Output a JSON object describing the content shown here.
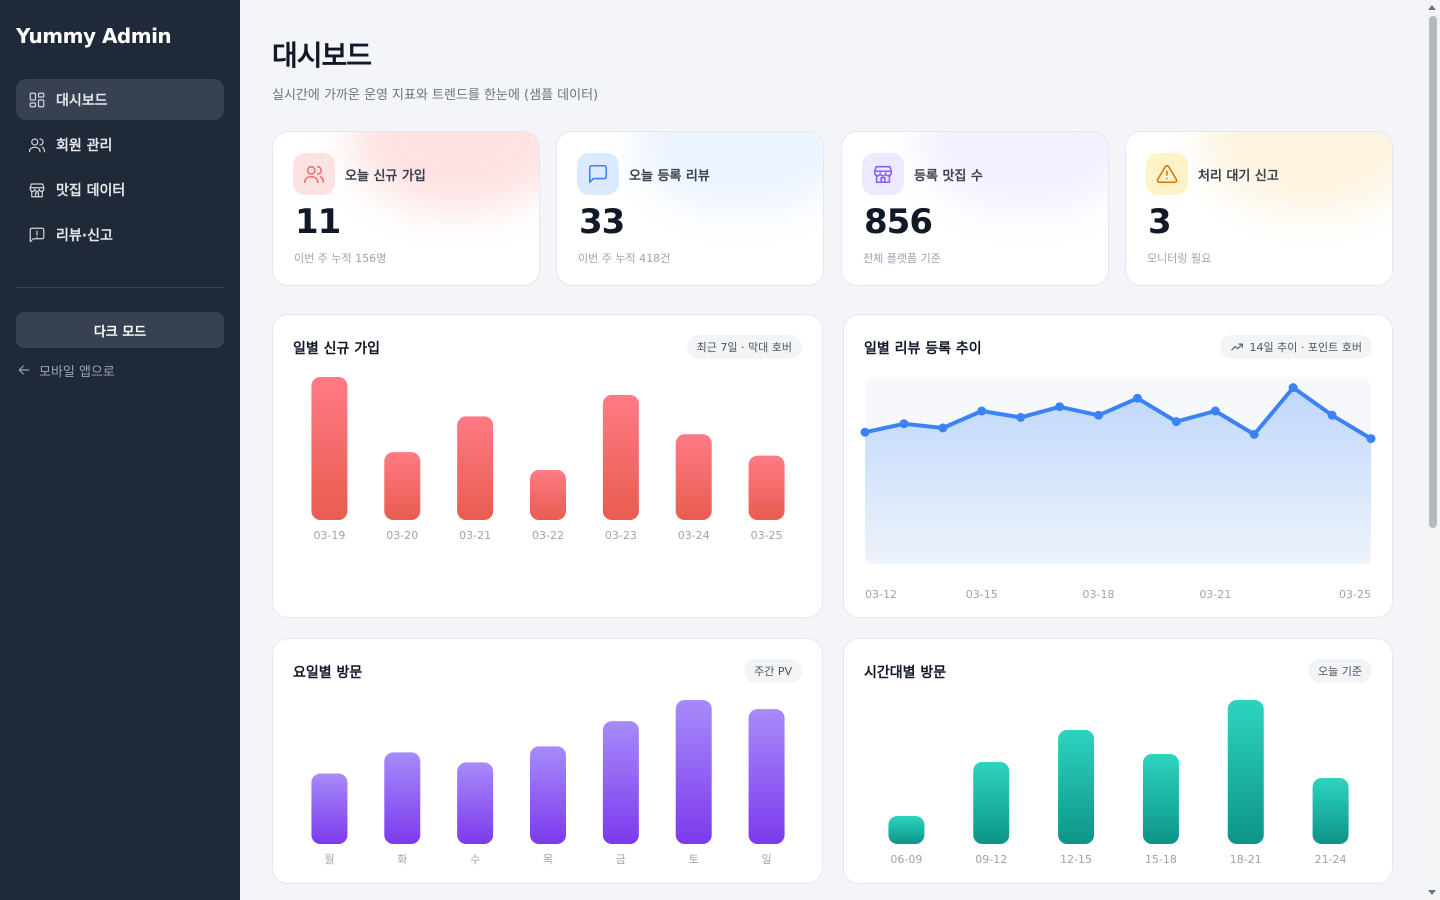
{
  "brand": "Yummy Admin",
  "sidebar": {
    "items": [
      {
        "label": "대시보드",
        "icon": "dashboard-icon",
        "active": true
      },
      {
        "label": "회원 관리",
        "icon": "users-icon",
        "active": false
      },
      {
        "label": "맛집 데이터",
        "icon": "store-icon",
        "active": false
      },
      {
        "label": "리뷰·신고",
        "icon": "report-icon",
        "active": false
      }
    ],
    "dark_mode_label": "다크 모드",
    "back_label": "모바일 앱으로"
  },
  "header": {
    "title": "대시보드",
    "subtitle": "실시간에 가까운 운영 지표와 트렌드를 한눈에 (샘플 데이터)"
  },
  "stats": [
    {
      "label": "오늘 신규 가입",
      "value": "11",
      "foot": "이번 주 누적 156명",
      "icon": "users-icon",
      "color": "#ef6b6b",
      "bg": "#fde2e2",
      "glow": "#fecaca"
    },
    {
      "label": "오늘 등록 리뷰",
      "value": "33",
      "foot": "이번 주 누적 418건",
      "icon": "message-icon",
      "color": "#3b82f6",
      "bg": "#dbeafe",
      "glow": "#dbeafe"
    },
    {
      "label": "등록 맛집 수",
      "value": "856",
      "foot": "전체 플랫폼 기준",
      "icon": "store-icon",
      "color": "#8b5cf6",
      "bg": "#ede9fe",
      "glow": "#e9e3ff"
    },
    {
      "label": "처리 대기 신고",
      "value": "3",
      "foot": "모니터링 필요",
      "icon": "warning-icon",
      "color": "#d97706",
      "bg": "#fef3c7",
      "glow": "#fde9c4"
    }
  ],
  "panels": {
    "daily_signups": {
      "title": "일별 신규 가입",
      "chip": "최근 7일 · 막대 호버"
    },
    "review_trend": {
      "title": "일별 리뷰 등록 추이",
      "chip": "14일 추이 · 포인트 호버"
    },
    "weekday_visits": {
      "title": "요일별 방문",
      "chip": "주간 PV"
    },
    "hourly_visits": {
      "title": "시간대별 방문",
      "chip": "오늘 기준"
    }
  },
  "chart_data": [
    {
      "type": "bar",
      "title": "일별 신규 가입",
      "categories": [
        "03-19",
        "03-20",
        "03-21",
        "03-22",
        "03-23",
        "03-24",
        "03-25"
      ],
      "values": [
        20,
        9.5,
        14.5,
        7,
        17.5,
        12,
        9
      ],
      "colors": [
        "#ff7a85",
        "#e85d4f"
      ]
    },
    {
      "type": "area",
      "title": "일별 리뷰 등록 추이",
      "categories": [
        "03-12",
        "03-13",
        "03-14",
        "03-15",
        "03-16",
        "03-17",
        "03-18",
        "03-19",
        "03-20",
        "03-21",
        "03-22",
        "03-23",
        "03-24",
        "03-25"
      ],
      "tick_labels": [
        "03-12",
        "03-15",
        "03-18",
        "03-21",
        "03-25"
      ],
      "values": [
        31,
        33,
        32,
        36,
        34.5,
        37,
        35,
        39,
        33.5,
        36,
        30.5,
        41.5,
        35,
        29.5
      ],
      "ylim": [
        0,
        44
      ],
      "colors": [
        "#3b82f6",
        "#bfd7fb"
      ]
    },
    {
      "type": "bar",
      "title": "요일별 방문",
      "categories": [
        "월",
        "화",
        "수",
        "목",
        "금",
        "토",
        "일"
      ],
      "values": [
        70,
        91,
        81,
        97,
        122,
        143,
        134
      ],
      "colors": [
        "#a78bfa",
        "#7c3aed"
      ]
    },
    {
      "type": "bar",
      "title": "시간대별 방문",
      "categories": [
        "06-09",
        "09-12",
        "12-15",
        "15-18",
        "18-21",
        "21-24"
      ],
      "values": [
        28,
        82,
        114,
        90,
        144,
        66
      ],
      "colors": [
        "#2dd4bf",
        "#0d9488"
      ]
    }
  ]
}
